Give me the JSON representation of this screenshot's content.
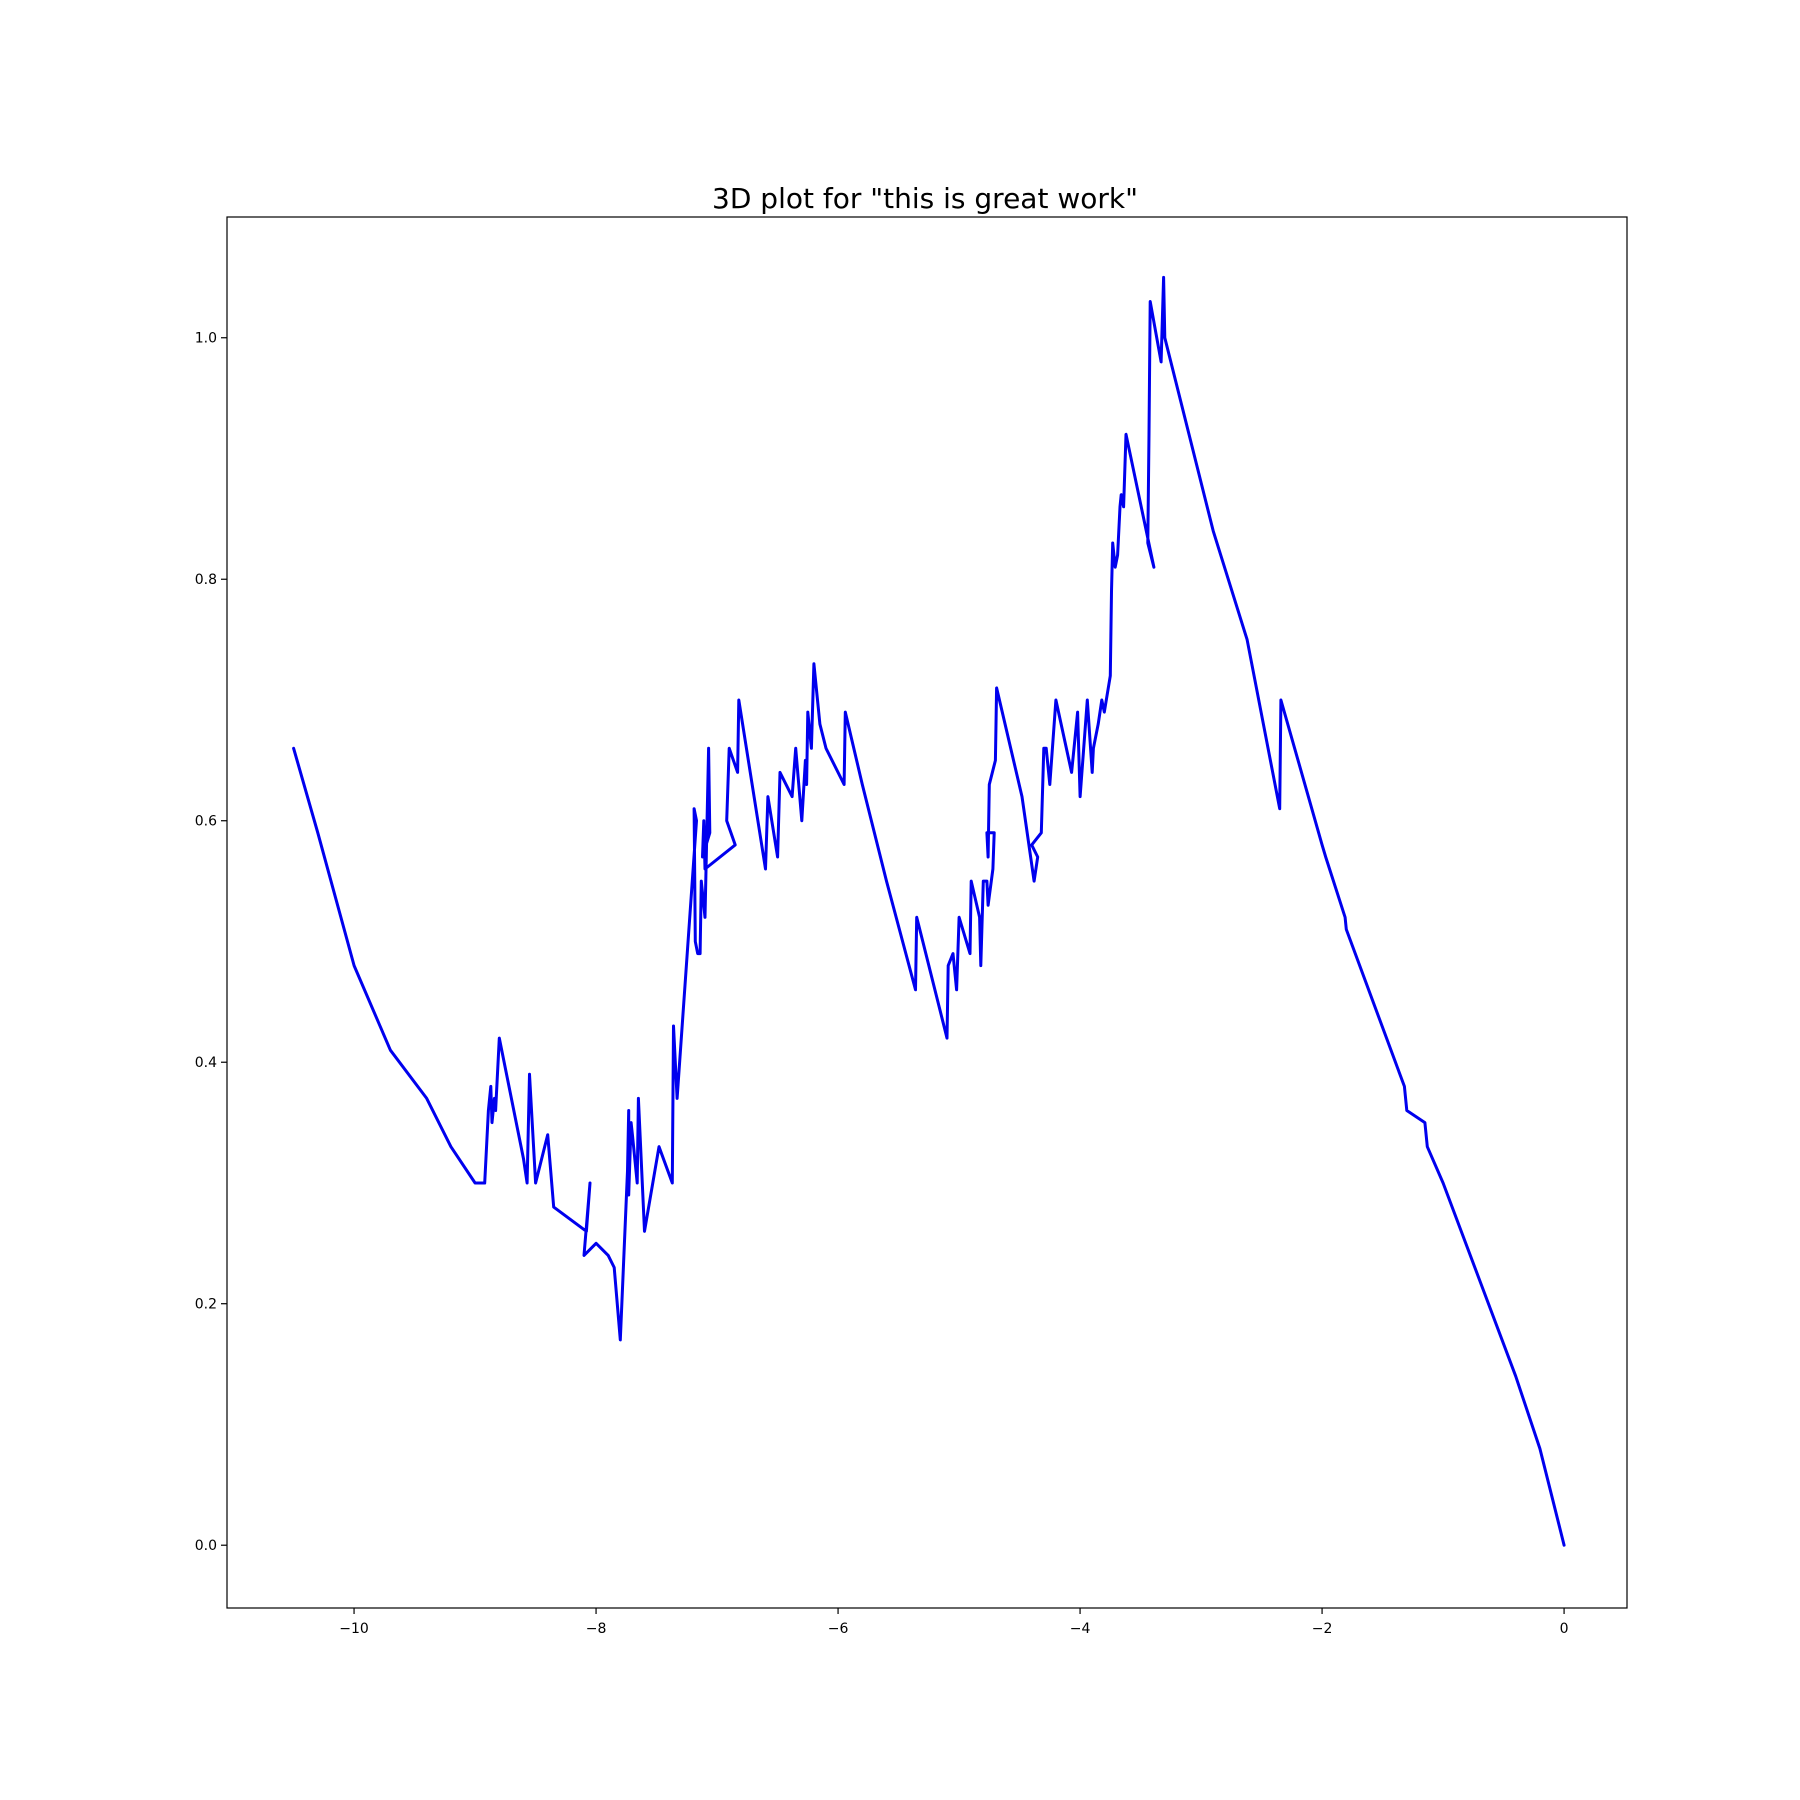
{
  "chart_data": {
    "type": "line",
    "title": "3D plot for \"this is great work\"",
    "xlabel": "",
    "ylabel": "",
    "xlim": [
      -11.05,
      0.52
    ],
    "ylim": [
      -0.052,
      1.1
    ],
    "grid": false,
    "legend": "none",
    "xticks": [
      -10,
      -8,
      -6,
      -4,
      -2,
      0
    ],
    "yticks": [
      0.0,
      0.2,
      0.4,
      0.6,
      0.8,
      1.0
    ],
    "xtick_labels": [
      "−10",
      "−8",
      "−6",
      "−4",
      "−2",
      "0"
    ],
    "ytick_labels": [
      "0.0",
      "0.2",
      "0.4",
      "0.6",
      "0.8",
      "1.0"
    ],
    "series": [
      {
        "color": "#0000ee",
        "x": [
          0.0,
          -0.1,
          -0.2,
          -0.4,
          -0.7,
          -1.0,
          -1.13,
          -1.15,
          -1.3,
          -1.32,
          -1.8,
          -1.81,
          -1.97,
          -2.0,
          -2.34,
          -2.35,
          -2.62,
          -2.9,
          -3.3,
          -3.31,
          -3.33,
          -3.42,
          -3.43,
          -3.44,
          -3.39,
          -3.62,
          -3.64,
          -3.66,
          -3.67,
          -3.69,
          -3.71,
          -3.73,
          -3.74,
          -3.75,
          -3.8,
          -3.82,
          -3.85,
          -3.89,
          -3.9,
          -3.94,
          -4.0,
          -4.02,
          -4.07,
          -4.2,
          -4.25,
          -4.28,
          -4.3,
          -4.32,
          -4.4,
          -4.35,
          -4.38,
          -4.48,
          -4.69,
          -4.7,
          -4.75,
          -4.76,
          -4.77,
          -4.71,
          -4.72,
          -4.76,
          -4.77,
          -4.8,
          -4.82,
          -4.83,
          -4.9,
          -4.91,
          -5.0,
          -5.02,
          -5.05,
          -5.09,
          -5.1,
          -5.3,
          -5.35,
          -5.36,
          -5.6,
          -5.8,
          -5.94,
          -5.95,
          -6.1,
          -6.15,
          -6.2,
          -6.22,
          -6.25,
          -6.26,
          -6.27,
          -6.3,
          -6.35,
          -6.38,
          -6.48,
          -6.5,
          -6.58,
          -6.6,
          -6.82,
          -6.83,
          -6.9,
          -6.92,
          -6.85,
          -7.1,
          -7.11,
          -7.12,
          -7.06,
          -7.07,
          -7.1,
          -7.13,
          -7.14,
          -7.16,
          -7.18,
          -7.19,
          -7.17,
          -7.33,
          -7.36,
          -7.37,
          -7.48,
          -7.6,
          -7.65,
          -7.66,
          -7.7,
          -7.71,
          -7.73,
          -7.73,
          -7.74,
          -7.8,
          -7.85,
          -7.9,
          -8.0,
          -8.1,
          -8.05,
          -8.08,
          -8.35,
          -8.4,
          -8.5,
          -8.55,
          -8.57,
          -8.6,
          -8.8,
          -8.83,
          -8.84,
          -8.86,
          -8.87,
          -8.88,
          -8.89,
          -8.92,
          -9.0,
          -9.2,
          -9.4,
          -9.7,
          -10.0,
          -10.3,
          -10.5
        ],
        "y": [
          0.0,
          0.04,
          0.08,
          0.14,
          0.22,
          0.3,
          0.33,
          0.35,
          0.36,
          0.38,
          0.51,
          0.52,
          0.57,
          0.58,
          0.7,
          0.61,
          0.75,
          0.84,
          1.0,
          1.05,
          0.98,
          1.03,
          0.92,
          0.83,
          0.81,
          0.92,
          0.86,
          0.87,
          0.86,
          0.82,
          0.81,
          0.83,
          0.79,
          0.72,
          0.69,
          0.7,
          0.68,
          0.66,
          0.64,
          0.7,
          0.62,
          0.69,
          0.64,
          0.7,
          0.63,
          0.66,
          0.66,
          0.59,
          0.58,
          0.57,
          0.55,
          0.62,
          0.71,
          0.65,
          0.63,
          0.57,
          0.59,
          0.59,
          0.56,
          0.53,
          0.55,
          0.55,
          0.48,
          0.52,
          0.55,
          0.49,
          0.52,
          0.46,
          0.49,
          0.48,
          0.42,
          0.5,
          0.52,
          0.46,
          0.55,
          0.63,
          0.69,
          0.63,
          0.66,
          0.68,
          0.73,
          0.66,
          0.69,
          0.63,
          0.65,
          0.6,
          0.66,
          0.62,
          0.64,
          0.57,
          0.62,
          0.56,
          0.7,
          0.64,
          0.66,
          0.6,
          0.58,
          0.56,
          0.6,
          0.57,
          0.59,
          0.66,
          0.52,
          0.55,
          0.49,
          0.49,
          0.5,
          0.61,
          0.6,
          0.37,
          0.43,
          0.3,
          0.33,
          0.26,
          0.37,
          0.3,
          0.34,
          0.35,
          0.29,
          0.36,
          0.31,
          0.17,
          0.23,
          0.24,
          0.25,
          0.24,
          0.3,
          0.26,
          0.28,
          0.34,
          0.3,
          0.39,
          0.3,
          0.32,
          0.42,
          0.36,
          0.37,
          0.35,
          0.38,
          0.37,
          0.36,
          0.3,
          0.3,
          0.33,
          0.37,
          0.41,
          0.48,
          0.59,
          0.66
        ]
      }
    ]
  }
}
